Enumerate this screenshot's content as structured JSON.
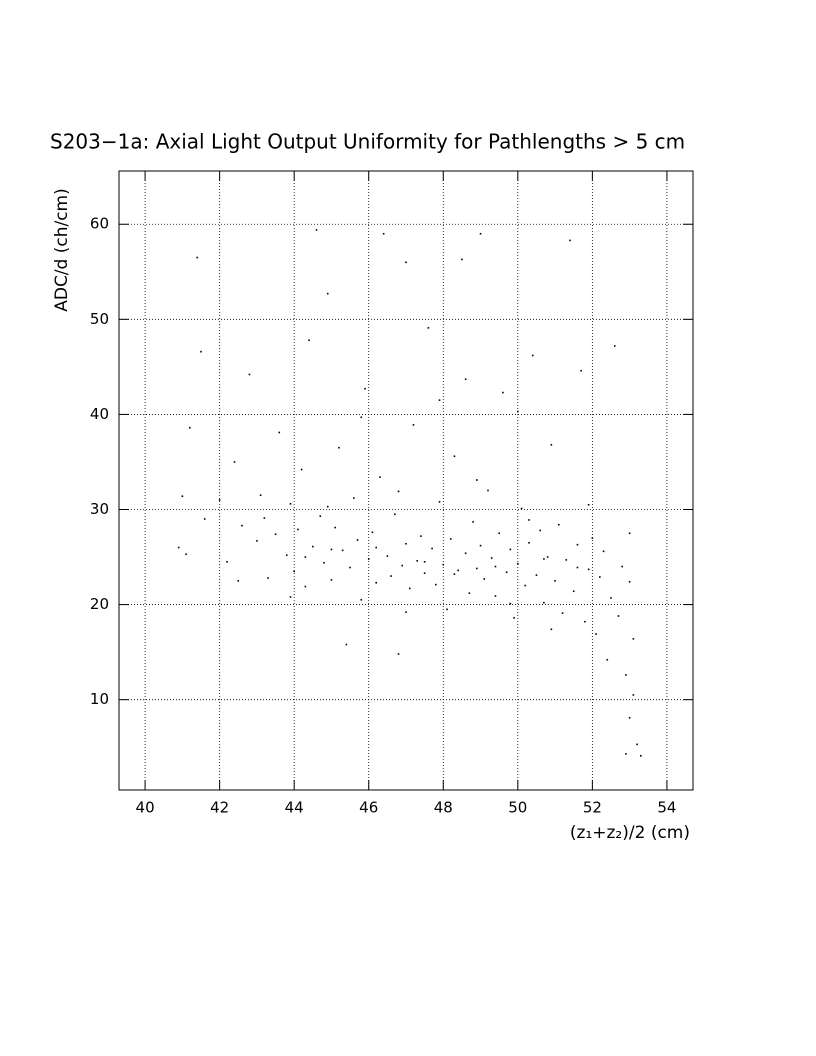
{
  "chart_data": {
    "type": "scatter",
    "title": "S203−1a: Axial Light Output Uniformity for Pathlengths > 5 cm",
    "x_label": "(z₁+z₂)/2 (cm)",
    "y_label": "ADC/d (ch/cm)",
    "xlim": [
      39.3,
      54.7
    ],
    "ylim": [
      0.5,
      65.6
    ],
    "xticks": [
      40,
      42,
      44,
      46,
      48,
      50,
      52,
      54
    ],
    "yticks": [
      10,
      20,
      30,
      40,
      50,
      60
    ],
    "grid": true,
    "color": "#000000",
    "x": [
      40.9,
      41.0,
      41.1,
      41.2,
      41.4,
      41.5,
      41.6,
      42.0,
      42.2,
      42.4,
      42.6,
      42.8,
      43.0,
      43.1,
      43.3,
      43.5,
      43.6,
      43.8,
      43.9,
      44.0,
      44.1,
      44.2,
      44.3,
      44.5,
      44.6,
      44.7,
      44.8,
      44.9,
      45.0,
      45.1,
      45.2,
      45.3,
      45.4,
      45.5,
      45.6,
      45.7,
      45.8,
      45.9,
      46.0,
      46.1,
      46.2,
      46.3,
      46.4,
      46.5,
      46.6,
      46.7,
      46.8,
      46.9,
      47.0,
      47.0,
      47.1,
      47.2,
      47.3,
      47.4,
      47.5,
      47.6,
      47.7,
      47.8,
      47.9,
      48.0,
      48.1,
      48.2,
      48.3,
      48.4,
      48.5,
      48.6,
      48.7,
      48.8,
      48.9,
      49.0,
      49.0,
      49.1,
      49.2,
      49.3,
      49.4,
      49.5,
      49.6,
      49.7,
      49.8,
      49.9,
      50.0,
      50.1,
      50.2,
      50.3,
      50.4,
      50.5,
      50.6,
      50.7,
      50.8,
      50.9,
      51.0,
      51.1,
      51.2,
      51.3,
      51.4,
      51.5,
      51.6,
      51.7,
      51.8,
      51.9,
      52.0,
      52.1,
      52.2,
      52.3,
      52.4,
      52.5,
      52.6,
      52.7,
      52.8,
      52.9,
      53.0,
      53.0,
      53.1,
      53.1,
      53.2,
      53.3,
      52.9,
      53.0,
      44.3,
      45.0,
      46.2,
      47.5,
      48.3,
      49.4,
      50.7,
      51.6,
      43.2,
      44.9,
      46.8,
      48.9,
      50.3,
      51.9,
      42.5,
      43.9,
      47.0,
      49.8,
      50.9,
      45.8,
      47.9,
      50.0,
      44.4,
      48.6
    ],
    "values": [
      26.0,
      31.4,
      25.3,
      38.6,
      56.5,
      46.6,
      29.0,
      31.0,
      24.5,
      35.0,
      28.3,
      44.2,
      26.7,
      31.5,
      22.8,
      27.4,
      38.1,
      25.2,
      30.6,
      23.5,
      27.9,
      34.2,
      21.9,
      26.1,
      59.4,
      29.3,
      24.4,
      52.7,
      22.6,
      28.1,
      36.5,
      25.7,
      15.8,
      23.9,
      31.2,
      26.8,
      20.5,
      42.7,
      24.8,
      27.6,
      22.3,
      33.4,
      59.0,
      25.1,
      23.0,
      29.5,
      14.8,
      24.1,
      56.0,
      26.4,
      21.7,
      38.9,
      24.6,
      27.2,
      23.3,
      49.1,
      25.9,
      22.1,
      30.8,
      24.2,
      19.5,
      26.9,
      35.6,
      23.6,
      56.3,
      25.4,
      21.2,
      28.7,
      23.8,
      59.0,
      26.2,
      22.7,
      32.0,
      24.9,
      20.9,
      27.5,
      42.3,
      23.4,
      25.8,
      18.6,
      24.3,
      30.1,
      22.0,
      26.5,
      46.2,
      23.1,
      27.8,
      20.2,
      25.0,
      36.8,
      22.5,
      28.4,
      19.1,
      24.7,
      58.3,
      21.4,
      26.3,
      44.6,
      18.2,
      23.7,
      27.0,
      16.9,
      22.9,
      25.6,
      14.2,
      20.7,
      47.2,
      18.8,
      24.0,
      12.6,
      22.4,
      8.1,
      16.4,
      10.5,
      5.3,
      4.1,
      4.3,
      27.5,
      25.0,
      25.8,
      26.0,
      24.5,
      23.2,
      24.0,
      24.8,
      23.9,
      29.1,
      30.3,
      31.9,
      33.1,
      28.9,
      30.5,
      22.5,
      20.8,
      19.2,
      20.1,
      17.4,
      39.7,
      41.5,
      40.3,
      47.8,
      43.7
    ]
  }
}
